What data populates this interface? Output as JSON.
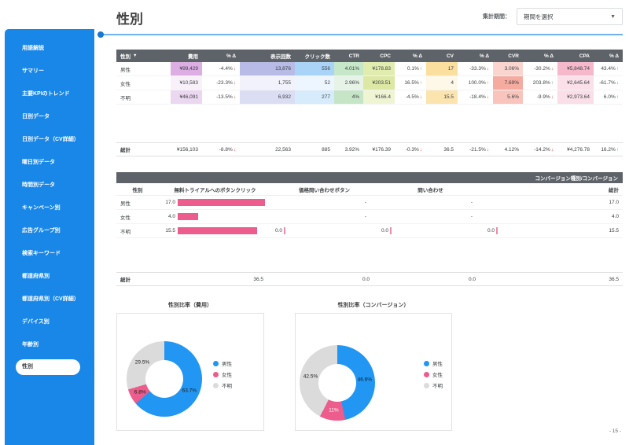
{
  "header": {
    "title": "性別",
    "period_label": "集計期間：",
    "period_value": "期間を選択"
  },
  "sidebar": {
    "active": "性別",
    "items": [
      "用語解説",
      "サマリー",
      "主要KPIのトレンド",
      "日別データ",
      "日別データ（CV詳細）",
      "曜日別データ",
      "時間別データ",
      "キャンペーン別",
      "広告グループ別",
      "検索キーワード",
      "都道府県別",
      "都道府県別（CV詳細）",
      "デバイス別",
      "年齢別",
      "性別"
    ]
  },
  "kpi_table": {
    "sort_column": "性別",
    "columns": [
      "性別",
      "費用",
      "% Δ",
      "表示回数",
      "クリック数",
      "CTR",
      "CPC",
      "% Δ",
      "CV",
      "% Δ",
      "CVR",
      "% Δ",
      "CPA",
      "% Δ"
    ],
    "rows": [
      {
        "cells": [
          {
            "v": "男性"
          },
          {
            "v": "¥99,429",
            "bg": "#dcaee3"
          },
          {
            "v": "-4.4%",
            "d": "dn"
          },
          {
            "v": "13,876",
            "bg": "#b7bbe5"
          },
          {
            "v": "556",
            "bg": "#aad4f7"
          },
          {
            "v": "4.01%",
            "bg": "#c7e7c9"
          },
          {
            "v": "¥178.83",
            "bg": "#e1ecaf"
          },
          {
            "v": "0.1%",
            "d": "up"
          },
          {
            "v": "17",
            "bg": "#fadf9e"
          },
          {
            "v": "-33.3%",
            "d": "dn"
          },
          {
            "v": "3.06%",
            "bg": "#fad4ce"
          },
          {
            "v": "-30.2%",
            "d": "dn"
          },
          {
            "v": "¥5,848.74",
            "bg": "#f5b9cb"
          },
          {
            "v": "43.4%",
            "d": "up"
          }
        ]
      },
      {
        "cells": [
          {
            "v": "女性"
          },
          {
            "v": "¥10,583",
            "bg": "#f8f1fa"
          },
          {
            "v": "-23.3%",
            "d": "dn"
          },
          {
            "v": "1,755",
            "bg": "#f1f2fb"
          },
          {
            "v": "52",
            "bg": "#edf6fe"
          },
          {
            "v": "2.96%",
            "bg": "#e6f3e6"
          },
          {
            "v": "¥203.51",
            "bg": "#dce8a3"
          },
          {
            "v": "16.5%",
            "d": "up"
          },
          {
            "v": "4",
            "bg": "#fef8e9"
          },
          {
            "v": "100.0%",
            "d": "up"
          },
          {
            "v": "7.69%",
            "bg": "#f5ab9f"
          },
          {
            "v": "203.8%",
            "d": "up"
          },
          {
            "v": "¥2,645.64",
            "bg": "#fbe0ea"
          },
          {
            "v": "-61.7%",
            "d": "dn"
          }
        ]
      },
      {
        "cells": [
          {
            "v": "不明"
          },
          {
            "v": "¥46,091",
            "bg": "#ebd7f0"
          },
          {
            "v": "-13.5%",
            "d": "dn"
          },
          {
            "v": "6,932",
            "bg": "#dbddf3"
          },
          {
            "v": "277",
            "bg": "#d6ebfb"
          },
          {
            "v": "4%",
            "bg": "#c6e5c7"
          },
          {
            "v": "¥166.4",
            "bg": "#eff5d3"
          },
          {
            "v": "-4.5%",
            "d": "dn"
          },
          {
            "v": "15.5",
            "bg": "#fbe4ae"
          },
          {
            "v": "-18.4%",
            "d": "dn"
          },
          {
            "v": "5.6%",
            "bg": "#f8c4bb"
          },
          {
            "v": "-9.9%",
            "d": "dn"
          },
          {
            "v": "¥2,973.64",
            "bg": "#fadee8"
          },
          {
            "v": "6.0%",
            "d": "up"
          }
        ]
      }
    ],
    "total": {
      "cells": [
        {
          "v": "総計"
        },
        {
          "v": "¥156,103"
        },
        {
          "v": "-8.8%",
          "d": "dn"
        },
        {
          "v": "22,563"
        },
        {
          "v": "885"
        },
        {
          "v": "3.92%"
        },
        {
          "v": "¥176.39"
        },
        {
          "v": "-0.3%",
          "d": "dn"
        },
        {
          "v": "36.5"
        },
        {
          "v": "-21.5%",
          "d": "dn"
        },
        {
          "v": "4.12%"
        },
        {
          "v": "-14.2%",
          "d": "dn"
        },
        {
          "v": "¥4,276.78"
        },
        {
          "v": "16.2%",
          "d": "up"
        }
      ]
    }
  },
  "conversion_table": {
    "band_title": "コンバージョン種別/コンバージョン",
    "columns": [
      "性別",
      "無料トライアルへのボタンクリック",
      "価格問い合わせボタン",
      "問い合わせ",
      "",
      "総計"
    ],
    "bar_color": "#ec5c8c",
    "rows": [
      {
        "label": "男性",
        "cells": [
          {
            "type": "bar",
            "text": "17.0",
            "value": 17
          },
          {
            "type": "null",
            "text": "-"
          },
          {
            "type": "null",
            "text": "-"
          },
          {
            "type": "empty",
            "text": ""
          }
        ],
        "total": "17.0"
      },
      {
        "label": "女性",
        "cells": [
          {
            "type": "bar",
            "text": "4.0",
            "value": 4
          },
          {
            "type": "null",
            "text": "-"
          },
          {
            "type": "null",
            "text": "-"
          },
          {
            "type": "empty",
            "text": ""
          }
        ],
        "total": "4.0"
      },
      {
        "label": "不明",
        "cells": [
          {
            "type": "bar",
            "text": "15.5",
            "value": 15.5
          },
          {
            "type": "zero",
            "text": "0.0"
          },
          {
            "type": "zero",
            "text": "0.0"
          },
          {
            "type": "zero",
            "text": "0.0"
          }
        ],
        "total": "15.5"
      }
    ],
    "total": {
      "label": "総計",
      "cells": [
        "36.5",
        "0.0",
        "0.0",
        ""
      ],
      "total": "36.5"
    }
  },
  "chart_data": [
    {
      "type": "pie",
      "title": "性別比率（費用）",
      "legend_position": "right",
      "slices": [
        {
          "label": "男性",
          "value": 63.7,
          "pct_text": "63.7%",
          "color": "#2196f3",
          "label_color": "#1b1b1b"
        },
        {
          "label": "女性",
          "value": 6.8,
          "pct_text": "6.8%",
          "color": "#ec5c8c",
          "label_color": "#1b1b1b"
        },
        {
          "label": "不明",
          "value": 29.5,
          "pct_text": "29.5%",
          "color": "#dbdbdb",
          "label_color": "#1b1b1b"
        }
      ]
    },
    {
      "type": "pie",
      "title": "性別比率（コンバージョン）",
      "legend_position": "right",
      "slices": [
        {
          "label": "男性",
          "value": 46.6,
          "pct_text": "46.6%",
          "color": "#2196f3",
          "label_color": "#1b1b1b"
        },
        {
          "label": "女性",
          "value": 11,
          "pct_text": "11%",
          "color": "#ec5c8c",
          "label_color": "#ffffff"
        },
        {
          "label": "不明",
          "value": 42.5,
          "pct_text": "42.5%",
          "color": "#dbdbdb",
          "label_color": "#1b1b1b"
        }
      ]
    }
  ],
  "page_number": "- 15 -"
}
